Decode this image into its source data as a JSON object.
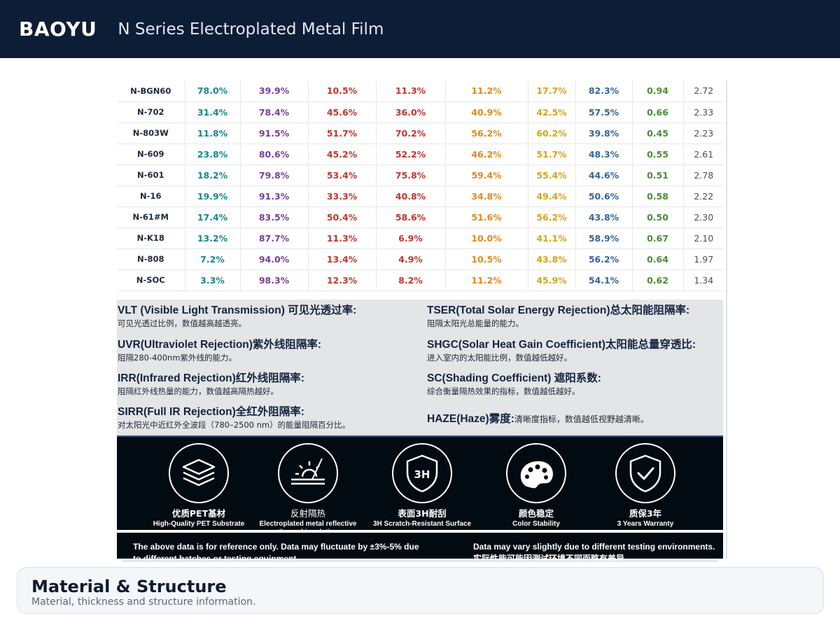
{
  "header": {
    "brand": "BAOYU",
    "title": "N Series Electroplated Metal Film"
  },
  "table": {
    "rows": [
      {
        "model": "N-BGN60",
        "vlt": "78.0%",
        "uvr": "39.9%",
        "irr": "10.5%",
        "sirr": "11.3%",
        "tser": "11.2%",
        "shgc": "17.7%",
        "sc": "82.3%",
        "haze": "0.94",
        "col9": "2.72"
      },
      {
        "model": "N-702",
        "vlt": "31.4%",
        "uvr": "78.4%",
        "irr": "45.6%",
        "sirr": "36.0%",
        "tser": "40.9%",
        "shgc": "42.5%",
        "sc": "57.5%",
        "haze": "0.66",
        "col9": "2.33"
      },
      {
        "model": "N-803W",
        "vlt": "11.8%",
        "uvr": "91.5%",
        "irr": "51.7%",
        "sirr": "70.2%",
        "tser": "56.2%",
        "shgc": "60.2%",
        "sc": "39.8%",
        "haze": "0.45",
        "col9": "2.23"
      },
      {
        "model": "N-609",
        "vlt": "23.8%",
        "uvr": "80.6%",
        "irr": "45.2%",
        "sirr": "52.2%",
        "tser": "46.2%",
        "shgc": "51.7%",
        "sc": "48.3%",
        "haze": "0.55",
        "col9": "2.61"
      },
      {
        "model": "N-601",
        "vlt": "18.2%",
        "uvr": "79.8%",
        "irr": "53.4%",
        "sirr": "75.8%",
        "tser": "59.4%",
        "shgc": "55.4%",
        "sc": "44.6%",
        "haze": "0.51",
        "col9": "2.78"
      },
      {
        "model": "N-16",
        "vlt": "19.9%",
        "uvr": "91.3%",
        "irr": "33.3%",
        "sirr": "40.8%",
        "tser": "34.8%",
        "shgc": "49.4%",
        "sc": "50.6%",
        "haze": "0.58",
        "col9": "2.22"
      },
      {
        "model": "N-61#M",
        "vlt": "17.4%",
        "uvr": "83.5%",
        "irr": "50.4%",
        "sirr": "58.6%",
        "tser": "51.6%",
        "shgc": "56.2%",
        "sc": "43.8%",
        "haze": "0.50",
        "col9": "2.30"
      },
      {
        "model": "N-K18",
        "vlt": "13.2%",
        "uvr": "87.7%",
        "irr": "11.3%",
        "sirr": "6.9%",
        "tser": "10.0%",
        "shgc": "41.1%",
        "sc": "58.9%",
        "haze": "0.67",
        "col9": "2.10"
      },
      {
        "model": "N-808",
        "vlt": "7.2%",
        "uvr": "94.0%",
        "irr": "13.4%",
        "sirr": "4.9%",
        "tser": "10.5%",
        "shgc": "43.8%",
        "sc": "56.2%",
        "haze": "0.64",
        "col9": "1.97"
      },
      {
        "model": "N-SOC",
        "vlt": "3.3%",
        "uvr": "98.3%",
        "irr": "12.3%",
        "sirr": "8.2%",
        "tser": "11.2%",
        "shgc": "45.9%",
        "sc": "54.1%",
        "haze": "0.62",
        "col9": "1.34"
      }
    ]
  },
  "legend": {
    "vlt": {
      "title": "VLT (Visible Light Transmission) 可见光透过率:",
      "desc": "可见光透过比例，数值越高越透亮。"
    },
    "uvr": {
      "title": "UVR(Ultraviolet Rejection)紫外线阻隔率:",
      "desc": "阻隔280-400nm紫外线的能力。"
    },
    "irr": {
      "title": "IRR(Infrared Rejection)红外线阻隔率:",
      "desc": "阻隔红外线热量的能力，数值越高隔热越好。"
    },
    "sirr": {
      "title": "SIRR(Full IR Rejection)全红外阻隔率:",
      "desc": "对太阳光中近红外全波段（780–2500 nm）的能量阻隔百分比。"
    },
    "tser": {
      "title": "TSER(Total Solar Energy Rejection)总太阳能阻隔率:",
      "desc": "阻隔太阳光总能量的能力。"
    },
    "shgc": {
      "title": "SHGC(Solar Heat Gain Coefficient)太阳能总量穿透比:",
      "desc": "进入室内的太阳能比例，数值越低越好。"
    },
    "sc": {
      "title": "SC(Shading Coefficient) 遮阳系数:",
      "desc": "综合衡量隔热效果的指标，数值越低越好。"
    },
    "haze": {
      "title": "HAZE(Haze)雾度:",
      "desc": "清晰度指标，数值越低视野越清晰。"
    }
  },
  "features": [
    {
      "icon": "layers-icon",
      "zh": "优质PET基材",
      "en": "High-Quality PET Substrate"
    },
    {
      "icon": "sun-reflect-icon",
      "zh": "反射隔热",
      "en": "Electroplated metal reflective thermal insulation"
    },
    {
      "icon": "shield-3h-icon",
      "zh": "表面3H耐刮",
      "en": "3H Scratch-Resistant Surface"
    },
    {
      "icon": "palette-icon",
      "zh": "颜色稳定",
      "en": "Color Stability"
    },
    {
      "icon": "shield-check-icon",
      "zh": "质保3年",
      "en": "3 Years Warranty"
    }
  ],
  "feature_icon_labels": {
    "shield_3h": "3H"
  },
  "disclaimer": {
    "left": "The above data is for reference only. Data may fluctuate by ±3%-5% due to different batches or testing equipment.",
    "right_en": "Data may vary slightly due to different testing environments.",
    "right_zh": "实际性能可能因测试环境不同而略有差异。"
  },
  "section": {
    "title": "Material & Structure",
    "subtitle": "Material, thickness and structure information."
  }
}
